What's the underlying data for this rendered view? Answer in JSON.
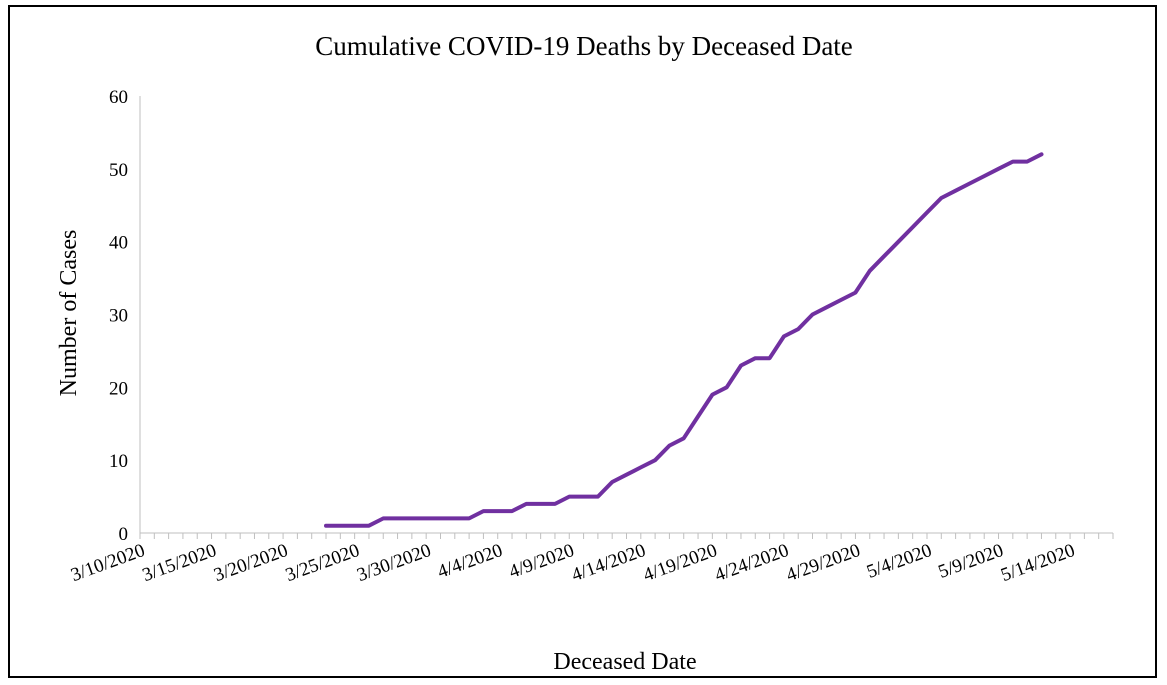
{
  "chart_data": {
    "type": "line",
    "title": "Cumulative COVID-19 Deaths by Deceased Date",
    "xlabel": "Deceased Date",
    "ylabel": "Number of Cases",
    "ylim": [
      0,
      60
    ],
    "yticks": [
      "0",
      "10",
      "20",
      "30",
      "40",
      "50",
      "60"
    ],
    "xlim": [
      "3/10/2020",
      "5/17/2020"
    ],
    "xtick_labels": [
      "3/10/2020",
      "3/15/2020",
      "3/20/2020",
      "3/25/2020",
      "3/30/2020",
      "4/4/2020",
      "4/9/2020",
      "4/14/2020",
      "4/19/2020",
      "4/24/2020",
      "4/29/2020",
      "5/4/2020",
      "5/9/2020",
      "5/14/2020"
    ],
    "grid": false,
    "legend": "none",
    "line_color": "#7030a0",
    "series": [
      {
        "x": [
          "3/23/2020",
          "3/24/2020",
          "3/25/2020",
          "3/26/2020",
          "3/27/2020",
          "3/28/2020",
          "3/29/2020",
          "3/30/2020",
          "3/31/2020",
          "4/1/2020",
          "4/2/2020",
          "4/3/2020",
          "4/4/2020",
          "4/5/2020",
          "4/6/2020",
          "4/7/2020",
          "4/8/2020",
          "4/9/2020",
          "4/10/2020",
          "4/11/2020",
          "4/12/2020",
          "4/13/2020",
          "4/14/2020",
          "4/15/2020",
          "4/16/2020",
          "4/17/2020",
          "4/18/2020",
          "4/19/2020",
          "4/20/2020",
          "4/21/2020",
          "4/22/2020",
          "4/23/2020",
          "4/24/2020",
          "4/25/2020",
          "4/26/2020",
          "4/27/2020",
          "4/28/2020",
          "4/29/2020",
          "4/30/2020",
          "5/1/2020",
          "5/2/2020",
          "5/3/2020",
          "5/4/2020",
          "5/5/2020",
          "5/6/2020",
          "5/7/2020",
          "5/8/2020",
          "5/9/2020",
          "5/10/2020",
          "5/11/2020",
          "5/12/2020"
        ],
        "values": [
          1,
          1,
          1,
          1,
          2,
          2,
          2,
          2,
          2,
          2,
          2,
          3,
          3,
          3,
          4,
          4,
          4,
          5,
          5,
          5,
          7,
          8,
          9,
          10,
          12,
          13,
          16,
          19,
          20,
          23,
          24,
          24,
          27,
          28,
          30,
          31,
          32,
          33,
          36,
          38,
          40,
          42,
          44,
          46,
          47,
          48,
          49,
          50,
          51,
          51,
          52
        ]
      }
    ]
  }
}
